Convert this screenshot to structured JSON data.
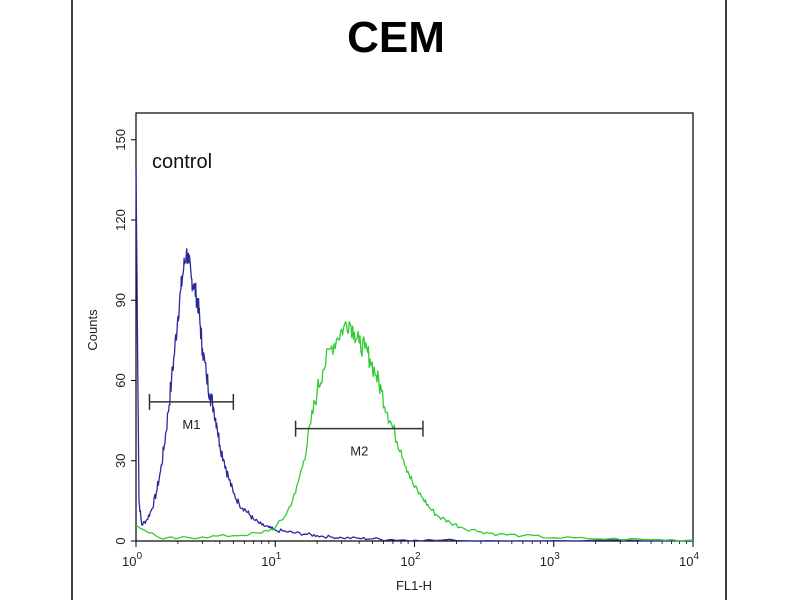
{
  "chart_data": {
    "type": "line",
    "title": "CEM",
    "xlabel": "FL1-H",
    "ylabel": "Counts",
    "x_scale": "log",
    "xlim": [
      1,
      10000
    ],
    "ylim": [
      0,
      160
    ],
    "x_ticks": [
      {
        "value": 1,
        "base": "10",
        "exp": "0"
      },
      {
        "value": 10,
        "base": "10",
        "exp": "1"
      },
      {
        "value": 100,
        "base": "10",
        "exp": "2"
      },
      {
        "value": 1000,
        "base": "10",
        "exp": "3"
      },
      {
        "value": 10000,
        "base": "10",
        "exp": "4"
      }
    ],
    "y_ticks": [
      {
        "value": 0,
        "label": "0"
      },
      {
        "value": 30,
        "label": "30"
      },
      {
        "value": 60,
        "label": "60"
      },
      {
        "value": 90,
        "label": "90"
      },
      {
        "value": 120,
        "label": "120"
      },
      {
        "value": 150,
        "label": "150"
      }
    ],
    "annotation": "control",
    "series": [
      {
        "color": "#2a2a9a",
        "x": [
          1.0,
          1.05,
          1.1,
          1.2,
          1.3,
          1.4,
          1.5,
          1.6,
          1.7,
          1.8,
          1.9,
          2.0,
          2.1,
          2.2,
          2.3,
          2.4,
          2.5,
          2.6,
          2.7,
          2.8,
          2.9,
          3.0,
          3.2,
          3.4,
          3.6,
          3.8,
          4.0,
          4.3,
          4.6,
          5.0,
          5.5,
          6.0,
          6.5,
          7.0,
          8.0,
          9.0,
          10.0,
          12.0,
          14.0,
          17.0,
          20.0,
          25.0,
          30.0,
          40.0,
          50.0,
          70.0,
          100.0,
          200.0,
          1000.0,
          10000.0
        ],
        "y": [
          140,
          15,
          6,
          8,
          12,
          18,
          26,
          36,
          48,
          60,
          72,
          84,
          94,
          102,
          108,
          104,
          98,
          96,
          92,
          88,
          80,
          72,
          62,
          55,
          50,
          44,
          36,
          30,
          24,
          18,
          14,
          12,
          10,
          8,
          6,
          5,
          4,
          3.5,
          3,
          2.5,
          2,
          1.5,
          1.2,
          1,
          0.8,
          0.5,
          0.3,
          0.2,
          0.1,
          0
        ]
      },
      {
        "color": "#33cc33",
        "x": [
          1.0,
          1.5,
          2.0,
          3.0,
          5.0,
          8.0,
          10.0,
          12.0,
          14.0,
          16.0,
          18.0,
          20.0,
          22.0,
          25.0,
          28.0,
          31.0,
          34.0,
          37.0,
          40.0,
          44.0,
          48.0,
          53.0,
          58.0,
          64.0,
          70.0,
          80.0,
          90.0,
          100.0,
          115.0,
          130.0,
          150.0,
          180.0,
          220.0,
          300.0,
          400.0,
          600.0,
          1000.0,
          2000.0,
          5000.0,
          10000.0
        ],
        "y": [
          6,
          1,
          1,
          1.5,
          2,
          3,
          5,
          10,
          18,
          30,
          44,
          56,
          64,
          72,
          76,
          80,
          82,
          78,
          74,
          72,
          68,
          62,
          56,
          48,
          42,
          34,
          26,
          20,
          16,
          12,
          9,
          7,
          5,
          3.5,
          2.5,
          2,
          1.2,
          0.8,
          0.5,
          0.3
        ]
      }
    ],
    "markers": [
      {
        "label": "M1",
        "x_start": 1.25,
        "x_end": 5.0,
        "y": 52
      },
      {
        "label": "M2",
        "x_start": 14.0,
        "x_end": 115.0,
        "y": 42
      }
    ]
  }
}
